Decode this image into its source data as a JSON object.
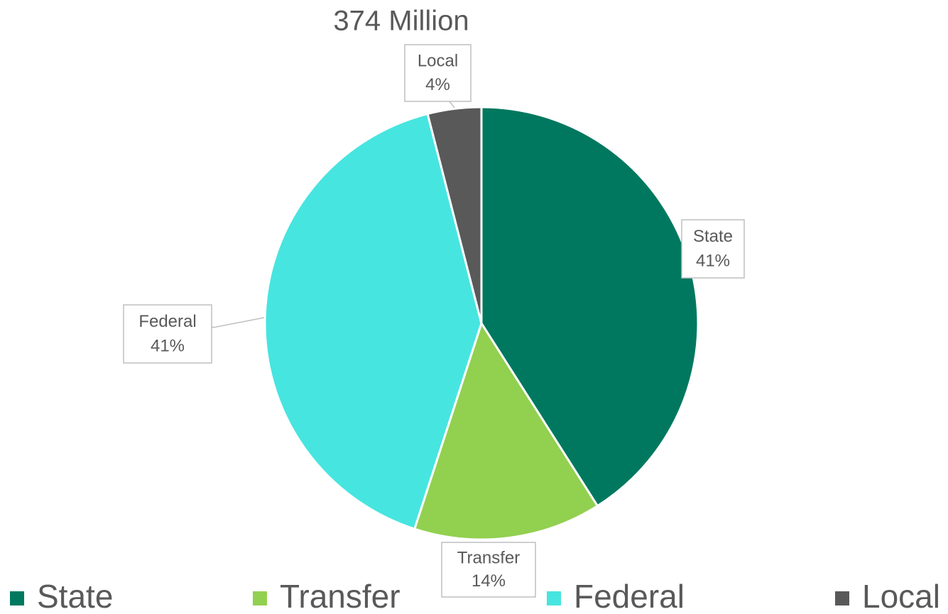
{
  "chart_data": {
    "type": "pie",
    "title": "374 Million",
    "categories": [
      "State",
      "Transfer",
      "Federal",
      "Local"
    ],
    "values": [
      41,
      14,
      41,
      4
    ],
    "value_labels": [
      "41%",
      "14%",
      "41%",
      "4%"
    ],
    "colors": [
      "#00785f",
      "#92d050",
      "#47e5e0",
      "#595959"
    ],
    "legend": "bottom"
  }
}
